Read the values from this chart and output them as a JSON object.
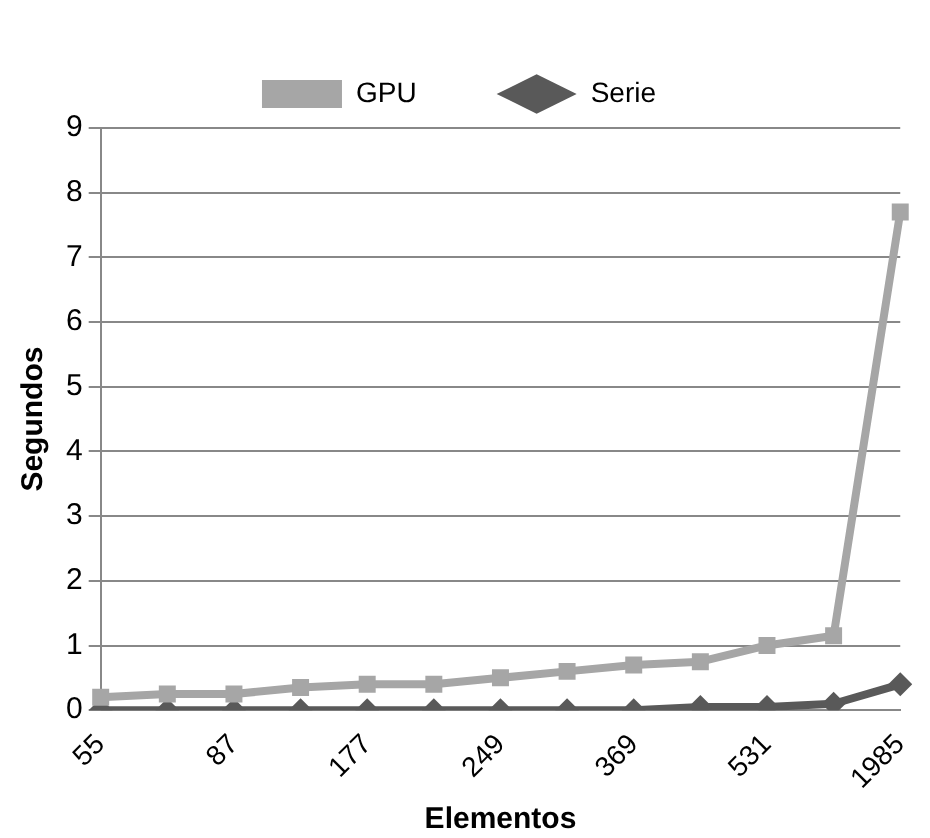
{
  "chart_data": {
    "type": "line",
    "xlabel": "Elementos",
    "ylabel": "Segundos",
    "categories": [
      "55",
      null,
      "87",
      null,
      "177",
      null,
      "249",
      null,
      "369",
      null,
      "531",
      null,
      "1985"
    ],
    "series": [
      {
        "name": "GPU",
        "color": "#a6a6a6",
        "marker": "square",
        "values": [
          0.2,
          0.25,
          0.25,
          0.35,
          0.4,
          0.4,
          0.5,
          0.6,
          0.7,
          0.75,
          1.0,
          1.15,
          7.7
        ]
      },
      {
        "name": "Serie",
        "color": "#595959",
        "marker": "diamond",
        "values": [
          0,
          0,
          0,
          0,
          0,
          0,
          0,
          0,
          0,
          0.05,
          0.05,
          0.1,
          0.4
        ]
      }
    ],
    "ylim": [
      0,
      9
    ],
    "yticks": [
      0,
      1,
      2,
      3,
      4,
      5,
      6,
      7,
      8,
      9
    ],
    "grid": "y",
    "legend": "top"
  }
}
